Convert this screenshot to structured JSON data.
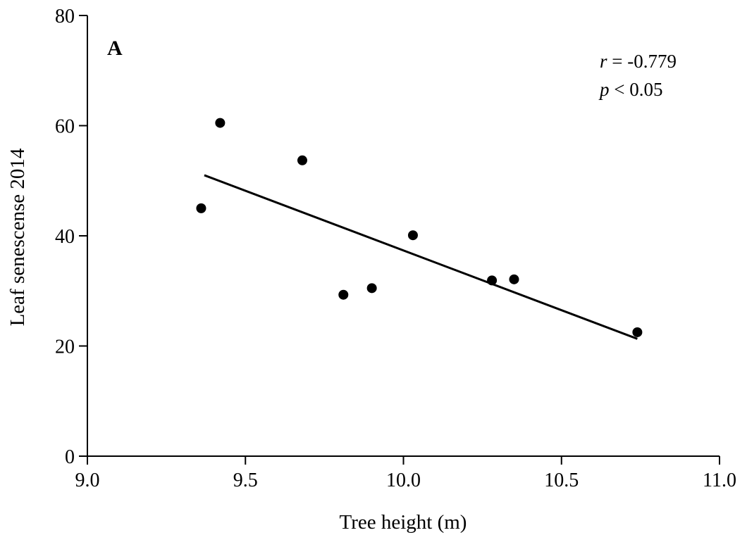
{
  "chart_data": {
    "type": "scatter",
    "title": "",
    "panel_label": "A",
    "xlabel": "Tree height (m)",
    "ylabel": "Leaf senescense 2014",
    "xlim": [
      9.0,
      11.0
    ],
    "ylim": [
      0,
      80
    ],
    "x_ticks": [
      9.0,
      9.5,
      10.0,
      10.5,
      11.0
    ],
    "x_tick_labels": [
      "9.0",
      "9.5",
      "10.0",
      "10.5",
      "11.0"
    ],
    "y_ticks": [
      0,
      20,
      40,
      60,
      80
    ],
    "y_tick_labels": [
      "0",
      "20",
      "40",
      "60",
      "80"
    ],
    "grid": false,
    "legend": "none",
    "points": [
      {
        "x": 9.36,
        "y": 45.0
      },
      {
        "x": 9.42,
        "y": 60.5
      },
      {
        "x": 9.68,
        "y": 53.7
      },
      {
        "x": 9.81,
        "y": 29.3
      },
      {
        "x": 9.9,
        "y": 30.5
      },
      {
        "x": 10.03,
        "y": 40.1
      },
      {
        "x": 10.28,
        "y": 31.9
      },
      {
        "x": 10.35,
        "y": 32.1
      },
      {
        "x": 10.74,
        "y": 22.5
      }
    ],
    "trendline": {
      "x": [
        9.37,
        10.74
      ],
      "y": [
        51.0,
        21.3
      ]
    },
    "annotations": {
      "r_var": "r",
      "r_text": " = -0.779",
      "p_var": "p",
      "p_text": " < 0.05"
    },
    "colors": {
      "points": "#000000",
      "line": "#000000",
      "axis": "#000000"
    }
  }
}
